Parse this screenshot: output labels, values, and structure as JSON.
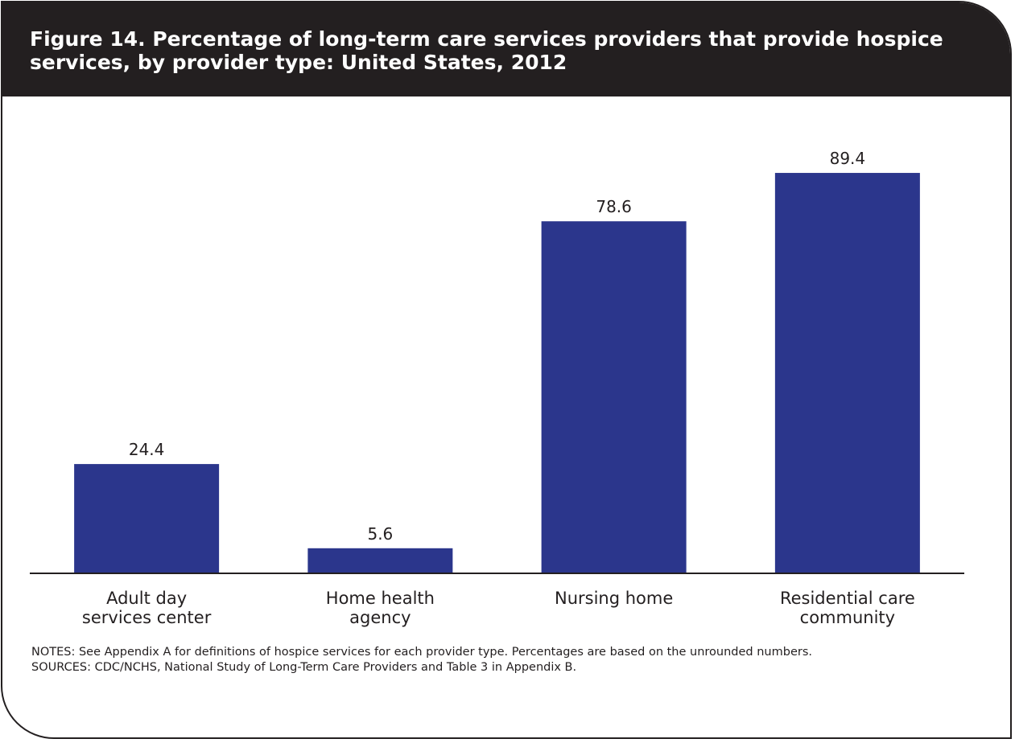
{
  "figure": {
    "title": "Figure 14. Percentage of long-term care services providers that provide hospice services, by provider type: United States, 2012",
    "notes": "NOTES: See Appendix A for definitions of hospice services for each provider type. Percentages are based on the unrounded numbers.",
    "sources": "SOURCES: CDC/NCHS, National Study of Long-Term Care Providers and Table 3 in Appendix B."
  },
  "colors": {
    "bar": "#2b368c",
    "header_background": "#231f20",
    "text": "#231f20"
  },
  "chart_data": {
    "type": "bar",
    "title": "Figure 14. Percentage of long-term care services providers that provide hospice services, by provider type: United States, 2012",
    "categories": [
      [
        "Adult day",
        "services center"
      ],
      [
        "Home health",
        "agency"
      ],
      [
        "Nursing home"
      ],
      [
        "Residential care",
        "community"
      ]
    ],
    "values": [
      24.4,
      5.6,
      78.6,
      89.4
    ],
    "value_labels": [
      "24.4",
      "5.6",
      "78.6",
      "89.4"
    ],
    "ylim": [
      0,
      100
    ],
    "grid": false,
    "legend": "none",
    "xlabel": "",
    "ylabel": ""
  }
}
